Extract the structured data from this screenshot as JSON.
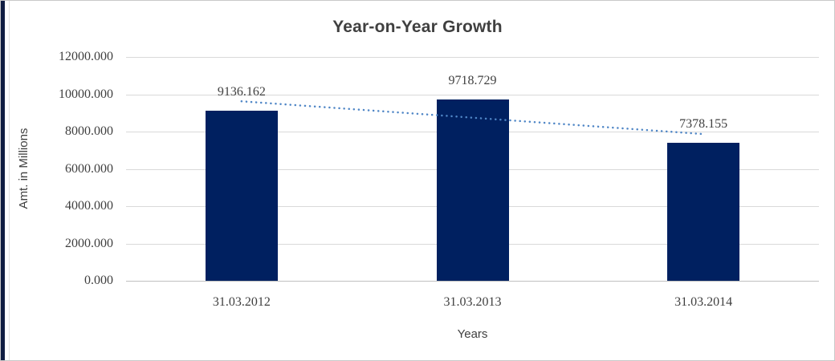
{
  "window": {
    "background": "#ffffff",
    "border_color": "#c9c9c9",
    "left_strip_color": "#101d42"
  },
  "chart_data": {
    "type": "bar",
    "title": "Year-on-Year Growth",
    "xlabel": "Years",
    "ylabel": "Amt. in Millions",
    "categories": [
      "31.03.2012",
      "31.03.2013",
      "31.03.2014"
    ],
    "values": [
      9136.162,
      9718.729,
      7378.155
    ],
    "data_labels": [
      "9136.162",
      "9718.729",
      "7378.155"
    ],
    "ytick_labels": [
      "12000.000",
      "10000.000",
      "8000.000",
      "6000.000",
      "4000.000",
      "2000.000",
      "0.000"
    ],
    "ylim": [
      0,
      12000
    ],
    "grid": true,
    "legend": "none",
    "trendline": {
      "type": "linear",
      "style": "dotted",
      "color": "#4f86c6"
    },
    "colors": {
      "bar": "#002060",
      "grid": "#d9d9d9",
      "axis_line": "#bfbfbf",
      "title": "#404040",
      "labels": "#3f3f3f",
      "data_label": "#404040"
    }
  }
}
